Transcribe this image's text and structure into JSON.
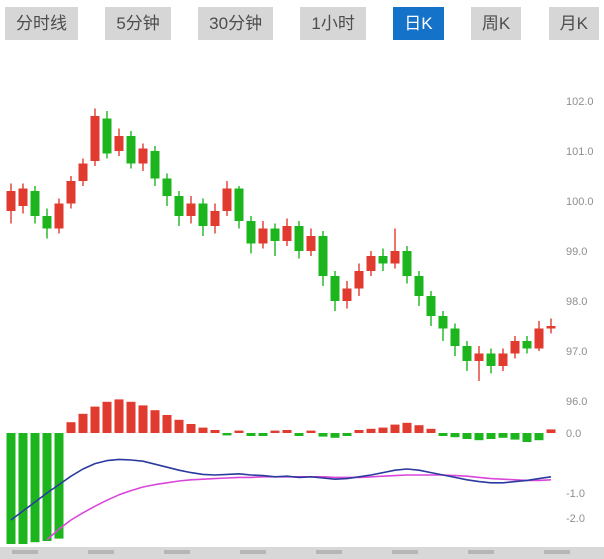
{
  "tabs": {
    "items": [
      {
        "label": "分时线",
        "active": false
      },
      {
        "label": "5分钟",
        "active": false
      },
      {
        "label": "30分钟",
        "active": false
      },
      {
        "label": "1小时",
        "active": false
      },
      {
        "label": "日K",
        "active": true
      },
      {
        "label": "周K",
        "active": false
      },
      {
        "label": "月K",
        "active": false
      }
    ],
    "active_color": "#1472c8",
    "inactive_color": "#d6d6d6",
    "active_text_color": "#ffffff",
    "inactive_text_color": "#4d4d4d"
  },
  "colors": {
    "up": "#e13a2e",
    "down": "#1db51d",
    "dif_line": "#2b3a9e",
    "dea_line": "#da46da",
    "axis_text": "#8f8f8f",
    "bottom_strip": "#d8d8d8"
  },
  "chart_data": {
    "type": "candlestick",
    "title": "日K (Daily K-line) with MACD",
    "legend_position": "none",
    "grid": false,
    "price_axis": {
      "position": "right",
      "range": [
        95.8,
        102.6
      ],
      "ticks": [
        {
          "label": "102.0",
          "value": 102.0
        },
        {
          "label": "101.0",
          "value": 101.0
        },
        {
          "label": "100.0",
          "value": 100.0
        },
        {
          "label": "99.0",
          "value": 99.0
        },
        {
          "label": "98.0",
          "value": 98.0
        },
        {
          "label": "97.0",
          "value": 97.0
        },
        {
          "label": "96.0",
          "value": 96.0
        }
      ]
    },
    "macd_axis": {
      "position": "right",
      "range": [
        0.6,
        -2.2
      ],
      "ticks": [
        {
          "label": "0.0",
          "value": 0.0
        },
        {
          "label": "-1.0",
          "value": -1.0
        },
        {
          "label": "-2.0",
          "value": -2.0
        }
      ]
    },
    "candles_ohlc_order": [
      "open",
      "high",
      "low",
      "close"
    ],
    "candles": [
      [
        99.8,
        100.35,
        99.55,
        100.2
      ],
      [
        99.9,
        100.35,
        99.75,
        100.25
      ],
      [
        100.2,
        100.3,
        99.55,
        99.7
      ],
      [
        99.7,
        99.85,
        99.25,
        99.45
      ],
      [
        99.45,
        100.05,
        99.35,
        99.95
      ],
      [
        99.95,
        100.5,
        99.85,
        100.4
      ],
      [
        100.4,
        100.85,
        100.3,
        100.75
      ],
      [
        100.8,
        101.85,
        100.7,
        101.7
      ],
      [
        101.65,
        101.8,
        100.85,
        100.95
      ],
      [
        101.0,
        101.45,
        100.9,
        101.3
      ],
      [
        101.3,
        101.4,
        100.65,
        100.75
      ],
      [
        100.75,
        101.15,
        100.6,
        101.05
      ],
      [
        101.0,
        101.1,
        100.3,
        100.45
      ],
      [
        100.45,
        100.55,
        99.9,
        100.1
      ],
      [
        100.1,
        100.2,
        99.5,
        99.7
      ],
      [
        99.7,
        100.1,
        99.55,
        99.95
      ],
      [
        99.95,
        100.05,
        99.3,
        99.5
      ],
      [
        99.5,
        99.95,
        99.35,
        99.8
      ],
      [
        99.8,
        100.4,
        99.7,
        100.25
      ],
      [
        100.25,
        100.3,
        99.45,
        99.6
      ],
      [
        99.6,
        99.7,
        98.95,
        99.15
      ],
      [
        99.15,
        99.6,
        99.05,
        99.45
      ],
      [
        99.45,
        99.55,
        98.9,
        99.2
      ],
      [
        99.2,
        99.65,
        99.1,
        99.5
      ],
      [
        99.5,
        99.6,
        98.85,
        99.0
      ],
      [
        99.0,
        99.45,
        98.9,
        99.3
      ],
      [
        99.3,
        99.4,
        98.3,
        98.5
      ],
      [
        98.5,
        98.6,
        97.8,
        98.0
      ],
      [
        98.0,
        98.4,
        97.85,
        98.25
      ],
      [
        98.25,
        98.75,
        98.1,
        98.6
      ],
      [
        98.6,
        99.0,
        98.5,
        98.9
      ],
      [
        98.9,
        99.05,
        98.6,
        98.75
      ],
      [
        98.75,
        99.45,
        98.65,
        99.0
      ],
      [
        99.0,
        99.1,
        98.35,
        98.5
      ],
      [
        98.5,
        98.6,
        97.9,
        98.1
      ],
      [
        98.1,
        98.2,
        97.5,
        97.7
      ],
      [
        97.7,
        97.8,
        97.2,
        97.45
      ],
      [
        97.45,
        97.55,
        96.9,
        97.1
      ],
      [
        97.1,
        97.2,
        96.6,
        96.8
      ],
      [
        96.8,
        97.1,
        96.4,
        96.95
      ],
      [
        96.95,
        97.05,
        96.55,
        96.7
      ],
      [
        96.7,
        97.05,
        96.6,
        96.95
      ],
      [
        96.95,
        97.3,
        96.85,
        97.2
      ],
      [
        97.2,
        97.3,
        96.95,
        97.05
      ],
      [
        97.05,
        97.6,
        97.0,
        97.45
      ],
      [
        97.45,
        97.65,
        97.35,
        97.5
      ]
    ],
    "macd": {
      "histogram": [
        -1.85,
        -1.85,
        -1.82,
        -1.8,
        -1.76,
        0.18,
        0.32,
        0.44,
        0.52,
        0.56,
        0.52,
        0.46,
        0.38,
        0.3,
        0.22,
        0.15,
        0.09,
        0.05,
        -0.04,
        0.04,
        -0.05,
        -0.05,
        0.04,
        0.05,
        -0.05,
        0.04,
        -0.06,
        -0.08,
        -0.05,
        0.05,
        0.07,
        0.09,
        0.14,
        0.17,
        0.13,
        0.07,
        -0.05,
        -0.07,
        -0.1,
        -0.12,
        -0.1,
        -0.08,
        -0.11,
        -0.15,
        -0.12,
        0.06
      ],
      "dif": [
        -1.45,
        -1.3,
        -1.15,
        -1.0,
        -0.86,
        -0.72,
        -0.6,
        -0.51,
        -0.46,
        -0.44,
        -0.45,
        -0.47,
        -0.52,
        -0.57,
        -0.62,
        -0.66,
        -0.69,
        -0.7,
        -0.69,
        -0.68,
        -0.7,
        -0.71,
        -0.73,
        -0.72,
        -0.74,
        -0.73,
        -0.75,
        -0.77,
        -0.76,
        -0.73,
        -0.7,
        -0.66,
        -0.62,
        -0.6,
        -0.62,
        -0.66,
        -0.7,
        -0.74,
        -0.78,
        -0.81,
        -0.83,
        -0.83,
        -0.81,
        -0.79,
        -0.76,
        -0.73
      ],
      "dea": [
        null,
        null,
        null,
        -1.78,
        -1.6,
        -1.45,
        -1.33,
        -1.22,
        -1.12,
        -1.03,
        -0.96,
        -0.9,
        -0.86,
        -0.83,
        -0.8,
        -0.78,
        -0.77,
        -0.76,
        -0.75,
        -0.74,
        -0.74,
        -0.73,
        -0.73,
        -0.73,
        -0.73,
        -0.73,
        -0.73,
        -0.74,
        -0.74,
        -0.74,
        -0.73,
        -0.72,
        -0.71,
        -0.7,
        -0.7,
        -0.7,
        -0.7,
        -0.71,
        -0.72,
        -0.74,
        -0.76,
        -0.77,
        -0.78,
        -0.79,
        -0.79,
        -0.78
      ]
    }
  }
}
